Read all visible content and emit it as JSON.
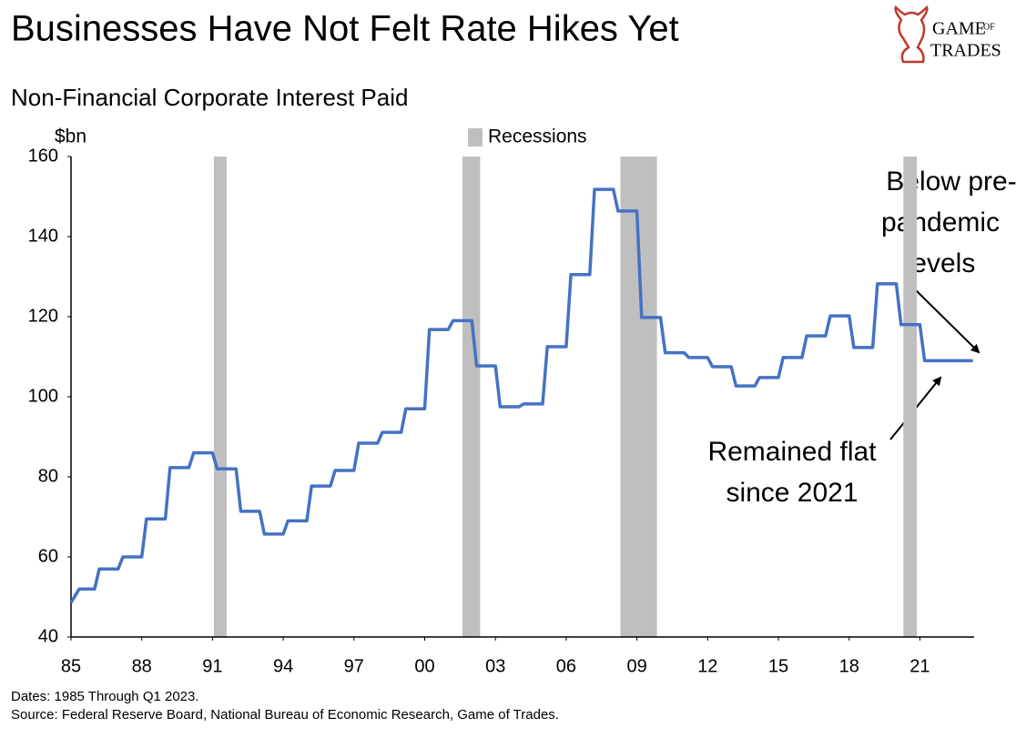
{
  "chart_data": {
    "type": "line",
    "title": "Businesses Have Not Felt Rate Hikes Yet",
    "subtitle": "Non-Financial Corporate Interest Paid",
    "y_unit": "$bn",
    "logo": [
      "GAME",
      "OF",
      "TRADES"
    ],
    "x": [
      1985.0,
      1985.35,
      1986.0,
      1986.2,
      1987.0,
      1987.2,
      1988.0,
      1988.2,
      1989.0,
      1989.2,
      1990.0,
      1990.2,
      1991.0,
      1991.2,
      1992.0,
      1992.2,
      1993.0,
      1993.2,
      1994.0,
      1994.2,
      1995.0,
      1995.2,
      1996.0,
      1996.2,
      1997.0,
      1997.2,
      1998.0,
      1998.2,
      1999.0,
      1999.2,
      2000.0,
      2000.2,
      2001.0,
      2001.2,
      2002.0,
      2002.2,
      2003.0,
      2003.2,
      2004.0,
      2004.2,
      2005.0,
      2005.2,
      2006.0,
      2006.2,
      2007.0,
      2007.2,
      2008.0,
      2008.2,
      2009.0,
      2009.2,
      2010.0,
      2010.2,
      2011.0,
      2011.2,
      2012.0,
      2012.2,
      2013.0,
      2013.2,
      2014.0,
      2014.2,
      2015.0,
      2015.2,
      2016.0,
      2016.2,
      2017.0,
      2017.2,
      2018.0,
      2018.2,
      2019.0,
      2019.2,
      2020.0,
      2020.2,
      2021.0,
      2021.2,
      2023.25
    ],
    "values": [
      48.6,
      52,
      52,
      57,
      57,
      60,
      60,
      69.5,
      69.5,
      82.3,
      82.3,
      86,
      86,
      82,
      82,
      71.4,
      71.4,
      65.7,
      65.7,
      69,
      69,
      77.7,
      77.7,
      81.6,
      81.6,
      88.4,
      88.4,
      91.1,
      91.1,
      97,
      97,
      116.8,
      116.8,
      119,
      119,
      107.7,
      107.7,
      97.5,
      97.5,
      98.2,
      98.2,
      112.5,
      112.5,
      130.5,
      130.5,
      151.8,
      151.8,
      146.4,
      146.4,
      119.8,
      119.8,
      111,
      111,
      109.8,
      109.8,
      107.5,
      107.5,
      102.7,
      102.7,
      104.8,
      104.8,
      109.8,
      109.8,
      115.2,
      115.2,
      120.2,
      120.2,
      112.3,
      112.3,
      128.2,
      128.2,
      118,
      118,
      109,
      109
    ],
    "color": "#4472c4",
    "recessions": {
      "name": "Recessions",
      "color": "#bfbfbf",
      "spans": [
        [
          1991.06,
          1991.6
        ],
        [
          2001.6,
          2002.35
        ],
        [
          2008.3,
          2009.85
        ],
        [
          2020.3,
          2020.87
        ]
      ]
    },
    "xlim": [
      1985,
      2023.3
    ],
    "ylim": [
      40,
      160
    ],
    "xticks": [
      {
        "value": 1985,
        "label": "85"
      },
      {
        "value": 1988,
        "label": "88"
      },
      {
        "value": 1991,
        "label": "91"
      },
      {
        "value": 1994,
        "label": "94"
      },
      {
        "value": 1997,
        "label": "97"
      },
      {
        "value": 2000,
        "label": "00"
      },
      {
        "value": 2003,
        "label": "03"
      },
      {
        "value": 2006,
        "label": "06"
      },
      {
        "value": 2009,
        "label": "09"
      },
      {
        "value": 2012,
        "label": "12"
      },
      {
        "value": 2015,
        "label": "15"
      },
      {
        "value": 2018,
        "label": "18"
      },
      {
        "value": 2021,
        "label": "21"
      }
    ],
    "yticks": [
      40,
      60,
      80,
      100,
      120,
      140,
      160
    ],
    "grid": false,
    "annotations": [
      [
        "Below pre-",
        "pandemic",
        "levels"
      ],
      [
        "Remained flat",
        "since 2021"
      ]
    ],
    "notes": [
      "Dates: 1985 Through Q1 2023.",
      "Source: Federal Reserve Board, National Bureau of Economic Research, Game of Trades."
    ]
  }
}
